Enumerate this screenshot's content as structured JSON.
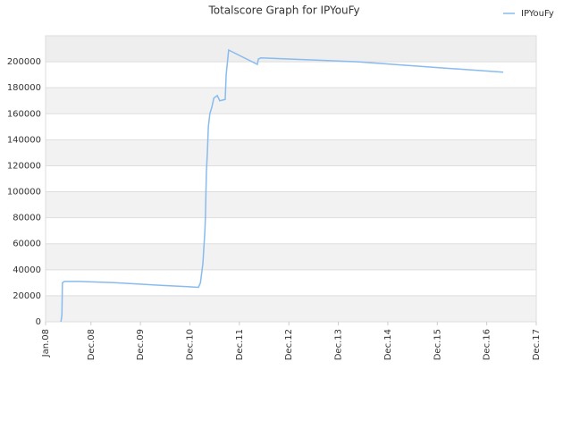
{
  "chart_data": {
    "type": "line",
    "title": "Totalscore Graph for IPYouFy",
    "x": [
      2008.31,
      2008.33,
      2008.34,
      2008.38,
      2008.67,
      2009.43,
      2010.33,
      2010.87,
      2011.09,
      2011.13,
      2011.18,
      2011.22,
      2011.23,
      2011.25,
      2011.27,
      2011.29,
      2011.32,
      2011.36,
      2011.4,
      2011.47,
      2011.52,
      2011.63,
      2011.65,
      2011.7,
      2012.28,
      2012.3,
      2012.35,
      2014.3,
      2016.11,
      2017.25
    ],
    "series": [
      {
        "name": "IPYouFy",
        "color": "#88bbee",
        "values": [
          0,
          5000,
          30000,
          31000,
          31000,
          30000,
          28000,
          27000,
          26500,
          30000,
          45000,
          70000,
          80000,
          115000,
          130000,
          150000,
          160000,
          165000,
          172000,
          174000,
          170000,
          171000,
          190000,
          209000,
          198000,
          202000,
          203000,
          200000,
          195000,
          192000
        ]
      }
    ],
    "xlim": [
      2008.0,
      2017.917
    ],
    "xticks": [
      {
        "value": 2008.0,
        "label": "Jan.08"
      },
      {
        "value": 2008.917,
        "label": "Dec.08"
      },
      {
        "value": 2009.917,
        "label": "Dec.09"
      },
      {
        "value": 2010.917,
        "label": "Dec.10"
      },
      {
        "value": 2011.917,
        "label": "Dec.11"
      },
      {
        "value": 2012.917,
        "label": "Dec.12"
      },
      {
        "value": 2013.917,
        "label": "Dec.13"
      },
      {
        "value": 2014.917,
        "label": "Dec.14"
      },
      {
        "value": 2015.917,
        "label": "Dec.15"
      },
      {
        "value": 2016.917,
        "label": "Dec.16"
      },
      {
        "value": 2017.917,
        "label": "Dec.17"
      }
    ],
    "ylim": [
      0,
      220000
    ],
    "yticks": [
      0,
      20000,
      40000,
      60000,
      80000,
      100000,
      120000,
      140000,
      160000,
      180000,
      200000
    ],
    "grid": true,
    "legend": "top-right"
  }
}
